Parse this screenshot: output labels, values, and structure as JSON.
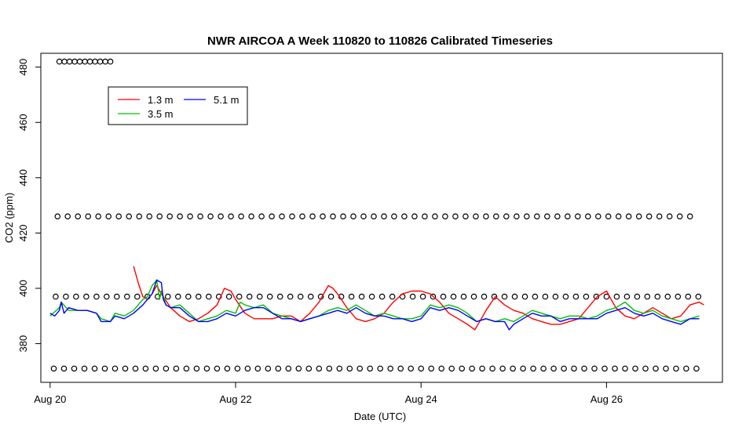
{
  "chart_data": {
    "type": "line",
    "title": "NWR AIRCOA A  Week 110820 to 110826  Calibrated Timeseries",
    "xlabel": "Date (UTC)",
    "ylabel": "CO2 (ppm)",
    "x_range_days": [
      -0.1,
      7.25
    ],
    "ylim": [
      366,
      485
    ],
    "x_ticks": [
      {
        "day": 0,
        "label": "Aug 20"
      },
      {
        "day": 2,
        "label": "Aug 22"
      },
      {
        "day": 4,
        "label": "Aug 24"
      },
      {
        "day": 6,
        "label": "Aug 26"
      }
    ],
    "y_ticks": [
      380,
      400,
      420,
      440,
      460,
      480
    ],
    "grid": false,
    "legend_placement": "top-left",
    "legend": [
      {
        "name": "1.3 m",
        "color": "#ff0000"
      },
      {
        "name": "3.5 m",
        "color": "#00c000"
      },
      {
        "name": "5.1 m",
        "color": "#0000ff"
      }
    ],
    "series": [
      {
        "name": "1.3 m",
        "color": "#ff0000",
        "points": [
          [
            0.9,
            408
          ],
          [
            0.95,
            402
          ],
          [
            1.0,
            397
          ],
          [
            1.05,
            396
          ],
          [
            1.1,
            398
          ],
          [
            1.15,
            401
          ],
          [
            1.2,
            398
          ],
          [
            1.3,
            393
          ],
          [
            1.4,
            390
          ],
          [
            1.5,
            388
          ],
          [
            1.6,
            389
          ],
          [
            1.7,
            391
          ],
          [
            1.8,
            394
          ],
          [
            1.88,
            400
          ],
          [
            1.95,
            399
          ],
          [
            2.0,
            396
          ],
          [
            2.1,
            391
          ],
          [
            2.2,
            389
          ],
          [
            2.3,
            389
          ],
          [
            2.4,
            389
          ],
          [
            2.5,
            390
          ],
          [
            2.6,
            390
          ],
          [
            2.7,
            388
          ],
          [
            2.8,
            391
          ],
          [
            2.9,
            395
          ],
          [
            3.0,
            401
          ],
          [
            3.05,
            400
          ],
          [
            3.1,
            398
          ],
          [
            3.2,
            393
          ],
          [
            3.3,
            389
          ],
          [
            3.4,
            388
          ],
          [
            3.5,
            389
          ],
          [
            3.6,
            391
          ],
          [
            3.7,
            395
          ],
          [
            3.8,
            398
          ],
          [
            3.9,
            399
          ],
          [
            4.0,
            399
          ],
          [
            4.1,
            398
          ],
          [
            4.2,
            395
          ],
          [
            4.3,
            391
          ],
          [
            4.4,
            389
          ],
          [
            4.5,
            387
          ],
          [
            4.58,
            385
          ],
          [
            4.65,
            389
          ],
          [
            4.7,
            392
          ],
          [
            4.8,
            397
          ],
          [
            4.9,
            394
          ],
          [
            5.0,
            392
          ],
          [
            5.1,
            391
          ],
          [
            5.2,
            389
          ],
          [
            5.3,
            388
          ],
          [
            5.4,
            387
          ],
          [
            5.5,
            387
          ],
          [
            5.6,
            388
          ],
          [
            5.7,
            389
          ],
          [
            5.8,
            393
          ],
          [
            5.9,
            397
          ],
          [
            5.95,
            398
          ],
          [
            6.0,
            399
          ],
          [
            6.05,
            396
          ],
          [
            6.1,
            393
          ],
          [
            6.2,
            390
          ],
          [
            6.3,
            389
          ],
          [
            6.4,
            391
          ],
          [
            6.5,
            393
          ],
          [
            6.6,
            391
          ],
          [
            6.7,
            389
          ],
          [
            6.8,
            390
          ],
          [
            6.9,
            394
          ],
          [
            7.0,
            395
          ],
          [
            7.05,
            394
          ]
        ]
      },
      {
        "name": "3.5 m",
        "color": "#00c000",
        "points": [
          [
            0.0,
            390
          ],
          [
            0.1,
            393
          ],
          [
            0.12,
            395
          ],
          [
            0.2,
            392
          ],
          [
            0.3,
            392
          ],
          [
            0.4,
            392
          ],
          [
            0.5,
            391
          ],
          [
            0.55,
            389
          ],
          [
            0.65,
            388
          ],
          [
            0.7,
            391
          ],
          [
            0.8,
            390
          ],
          [
            0.9,
            392
          ],
          [
            1.0,
            396
          ],
          [
            1.05,
            397
          ],
          [
            1.1,
            401
          ],
          [
            1.15,
            403
          ],
          [
            1.18,
            396
          ],
          [
            1.2,
            399
          ],
          [
            1.25,
            394
          ],
          [
            1.3,
            393
          ],
          [
            1.4,
            394
          ],
          [
            1.5,
            391
          ],
          [
            1.6,
            388
          ],
          [
            1.7,
            389
          ],
          [
            1.8,
            390
          ],
          [
            1.9,
            392
          ],
          [
            2.0,
            391
          ],
          [
            2.05,
            395
          ],
          [
            2.1,
            394
          ],
          [
            2.2,
            393
          ],
          [
            2.3,
            394
          ],
          [
            2.4,
            391
          ],
          [
            2.5,
            390
          ],
          [
            2.6,
            389
          ],
          [
            2.7,
            388
          ],
          [
            2.8,
            389
          ],
          [
            2.9,
            390
          ],
          [
            3.0,
            392
          ],
          [
            3.1,
            393
          ],
          [
            3.2,
            392
          ],
          [
            3.3,
            394
          ],
          [
            3.4,
            392
          ],
          [
            3.5,
            390
          ],
          [
            3.6,
            391
          ],
          [
            3.7,
            390
          ],
          [
            3.8,
            389
          ],
          [
            3.9,
            389
          ],
          [
            4.0,
            390
          ],
          [
            4.1,
            394
          ],
          [
            4.2,
            393
          ],
          [
            4.3,
            394
          ],
          [
            4.4,
            393
          ],
          [
            4.5,
            391
          ],
          [
            4.6,
            388
          ],
          [
            4.7,
            389
          ],
          [
            4.8,
            388
          ],
          [
            4.9,
            389
          ],
          [
            5.0,
            388
          ],
          [
            5.1,
            390
          ],
          [
            5.2,
            392
          ],
          [
            5.3,
            391
          ],
          [
            5.4,
            390
          ],
          [
            5.5,
            389
          ],
          [
            5.6,
            390
          ],
          [
            5.7,
            390
          ],
          [
            5.8,
            389
          ],
          [
            5.9,
            390
          ],
          [
            6.0,
            392
          ],
          [
            6.1,
            393
          ],
          [
            6.2,
            395
          ],
          [
            6.3,
            392
          ],
          [
            6.4,
            391
          ],
          [
            6.5,
            392
          ],
          [
            6.6,
            390
          ],
          [
            6.7,
            389
          ],
          [
            6.8,
            388
          ],
          [
            6.9,
            389
          ],
          [
            7.0,
            390
          ]
        ]
      },
      {
        "name": "5.1 m",
        "color": "#0000ff",
        "points": [
          [
            0.0,
            391
          ],
          [
            0.05,
            390
          ],
          [
            0.1,
            392
          ],
          [
            0.12,
            395
          ],
          [
            0.15,
            391
          ],
          [
            0.2,
            393
          ],
          [
            0.3,
            392
          ],
          [
            0.4,
            392
          ],
          [
            0.5,
            391
          ],
          [
            0.55,
            388
          ],
          [
            0.65,
            388
          ],
          [
            0.7,
            390
          ],
          [
            0.8,
            389
          ],
          [
            0.9,
            391
          ],
          [
            1.0,
            394
          ],
          [
            1.05,
            396
          ],
          [
            1.1,
            398
          ],
          [
            1.15,
            403
          ],
          [
            1.2,
            402
          ],
          [
            1.22,
            396
          ],
          [
            1.25,
            394
          ],
          [
            1.3,
            393
          ],
          [
            1.4,
            393
          ],
          [
            1.5,
            390
          ],
          [
            1.6,
            388
          ],
          [
            1.7,
            388
          ],
          [
            1.8,
            389
          ],
          [
            1.9,
            391
          ],
          [
            2.0,
            390
          ],
          [
            2.05,
            391
          ],
          [
            2.1,
            392
          ],
          [
            2.2,
            393
          ],
          [
            2.3,
            393
          ],
          [
            2.4,
            391
          ],
          [
            2.5,
            389
          ],
          [
            2.6,
            389
          ],
          [
            2.7,
            388
          ],
          [
            2.8,
            389
          ],
          [
            2.9,
            390
          ],
          [
            3.0,
            391
          ],
          [
            3.1,
            392
          ],
          [
            3.2,
            391
          ],
          [
            3.3,
            393
          ],
          [
            3.4,
            391
          ],
          [
            3.5,
            390
          ],
          [
            3.6,
            390
          ],
          [
            3.7,
            389
          ],
          [
            3.8,
            389
          ],
          [
            3.9,
            388
          ],
          [
            4.0,
            389
          ],
          [
            4.1,
            393
          ],
          [
            4.2,
            392
          ],
          [
            4.3,
            393
          ],
          [
            4.4,
            392
          ],
          [
            4.5,
            390
          ],
          [
            4.6,
            388
          ],
          [
            4.7,
            389
          ],
          [
            4.8,
            388
          ],
          [
            4.9,
            388
          ],
          [
            4.95,
            385
          ],
          [
            5.0,
            387
          ],
          [
            5.1,
            389
          ],
          [
            5.2,
            391
          ],
          [
            5.3,
            390
          ],
          [
            5.4,
            390
          ],
          [
            5.5,
            388
          ],
          [
            5.6,
            389
          ],
          [
            5.7,
            389
          ],
          [
            5.8,
            389
          ],
          [
            5.9,
            389
          ],
          [
            6.0,
            391
          ],
          [
            6.1,
            392
          ],
          [
            6.2,
            393
          ],
          [
            6.3,
            391
          ],
          [
            6.4,
            390
          ],
          [
            6.5,
            391
          ],
          [
            6.6,
            389
          ],
          [
            6.7,
            388
          ],
          [
            6.8,
            387
          ],
          [
            6.9,
            389
          ],
          [
            7.0,
            389
          ]
        ]
      }
    ],
    "marker_rows": [
      {
        "y": 482,
        "x_start": 0.1,
        "x_end": 0.65,
        "step": 0.055
      },
      {
        "y": 426,
        "x_start": 0.08,
        "x_end": 7.0,
        "step": 0.11
      },
      {
        "y": 397,
        "x_start": 0.06,
        "x_end": 7.0,
        "step": 0.11
      },
      {
        "y": 371,
        "x_start": 0.04,
        "x_end": 7.0,
        "step": 0.11
      }
    ],
    "marker_color": "#000000"
  }
}
